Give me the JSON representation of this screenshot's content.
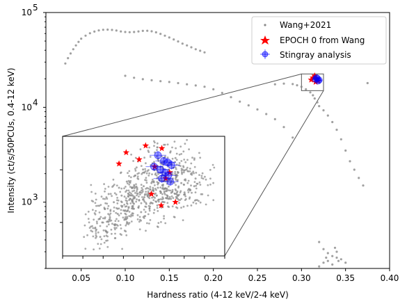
{
  "chart_data": {
    "type": "scatter",
    "title": "",
    "xlabel": "Hardness ratio (4-12 keV/2-4 keV)",
    "ylabel": "Intensity (ct/s/50PCUs, 0.4-12 keV)",
    "xlim": [
      0.01,
      0.4
    ],
    "ylim": [
      200,
      100000
    ],
    "yscale": "log",
    "x_ticks": [
      "0.05",
      "0.10",
      "0.15",
      "0.20",
      "0.25",
      "0.30",
      "0.35",
      "0.40"
    ],
    "y_ticks": [
      {
        "base": "10",
        "exp": "3"
      },
      {
        "base": "10",
        "exp": "4"
      },
      {
        "base": "10",
        "exp": "5"
      }
    ],
    "legend_position": "upper right",
    "colors": {
      "wang": "#888888",
      "epoch": "#ff0000",
      "stingray": "#0000ff",
      "box": "#555555"
    },
    "series": [
      {
        "name": "Wang+2021",
        "marker": "dot",
        "values": [
          [
            0.032,
            29000
          ],
          [
            0.035,
            33000
          ],
          [
            0.038,
            37000
          ],
          [
            0.041,
            41000
          ],
          [
            0.044,
            45000
          ],
          [
            0.047,
            49000
          ],
          [
            0.05,
            53000
          ],
          [
            0.055,
            57000
          ],
          [
            0.06,
            60500
          ],
          [
            0.065,
            63000
          ],
          [
            0.07,
            64800
          ],
          [
            0.075,
            65800
          ],
          [
            0.08,
            66000
          ],
          [
            0.085,
            65600
          ],
          [
            0.09,
            64600
          ],
          [
            0.095,
            63200
          ],
          [
            0.1,
            62300
          ],
          [
            0.105,
            62000
          ],
          [
            0.11,
            62300
          ],
          [
            0.115,
            63200
          ],
          [
            0.12,
            64000
          ],
          [
            0.125,
            64200
          ],
          [
            0.13,
            63400
          ],
          [
            0.135,
            61800
          ],
          [
            0.14,
            59500
          ],
          [
            0.145,
            57000
          ],
          [
            0.15,
            54500
          ],
          [
            0.155,
            52000
          ],
          [
            0.16,
            49500
          ],
          [
            0.165,
            47000
          ],
          [
            0.17,
            45000
          ],
          [
            0.175,
            43000
          ],
          [
            0.18,
            41000
          ],
          [
            0.185,
            39500
          ],
          [
            0.19,
            38000
          ],
          [
            0.1,
            21500
          ],
          [
            0.11,
            20500
          ],
          [
            0.12,
            19800
          ],
          [
            0.13,
            19300
          ],
          [
            0.14,
            18900
          ],
          [
            0.15,
            18500
          ],
          [
            0.16,
            18000
          ],
          [
            0.17,
            17500
          ],
          [
            0.18,
            17000
          ],
          [
            0.19,
            16500
          ],
          [
            0.2,
            15500
          ],
          [
            0.21,
            14200
          ],
          [
            0.22,
            12800
          ],
          [
            0.23,
            11500
          ],
          [
            0.24,
            10500
          ],
          [
            0.25,
            9500
          ],
          [
            0.26,
            8500
          ],
          [
            0.27,
            7500
          ],
          [
            0.28,
            6200
          ],
          [
            0.29,
            4800
          ],
          [
            0.27,
            17500
          ],
          [
            0.28,
            17800
          ],
          [
            0.29,
            17600
          ],
          [
            0.295,
            17100
          ],
          [
            0.3,
            16500
          ],
          [
            0.305,
            15500
          ],
          [
            0.31,
            14400
          ],
          [
            0.313,
            13400
          ],
          [
            0.315,
            12400
          ],
          [
            0.318,
            11300
          ],
          [
            0.32,
            10300
          ],
          [
            0.325,
            9300
          ],
          [
            0.33,
            8200
          ],
          [
            0.335,
            7000
          ],
          [
            0.34,
            5800
          ],
          [
            0.345,
            4600
          ],
          [
            0.35,
            3500
          ],
          [
            0.355,
            2700
          ],
          [
            0.36,
            2200
          ],
          [
            0.365,
            1800
          ],
          [
            0.37,
            1500
          ],
          [
            0.375,
            18000
          ],
          [
            0.32,
            380
          ],
          [
            0.325,
            320
          ],
          [
            0.33,
            290
          ],
          [
            0.335,
            270
          ],
          [
            0.34,
            260
          ],
          [
            0.345,
            250
          ],
          [
            0.33,
            240
          ],
          [
            0.325,
            230
          ],
          [
            0.335,
            220
          ],
          [
            0.32,
            210
          ],
          [
            0.34,
            300
          ],
          [
            0.338,
            330
          ],
          [
            0.328,
            260
          ],
          [
            0.342,
            240
          ],
          [
            0.35,
            230
          ]
        ]
      },
      {
        "name": "EPOCH 0 from Wang",
        "marker": "star",
        "values": [
          [
            0.311,
            19500
          ],
          [
            0.313,
            20500
          ],
          [
            0.315,
            21500
          ],
          [
            0.317,
            20000
          ],
          [
            0.319,
            19000
          ],
          [
            0.316,
            18500
          ]
        ]
      },
      {
        "name": "Stingray analysis",
        "marker": "circle-errorbar",
        "values": [
          [
            0.316,
            19800
          ],
          [
            0.318,
            20200
          ],
          [
            0.32,
            19400
          ],
          [
            0.319,
            19000
          ],
          [
            0.317,
            20500
          ]
        ]
      }
    ],
    "zoom_region": {
      "xlim": [
        0.3,
        0.325
      ],
      "ylim": [
        15000,
        22500
      ]
    },
    "inset": {
      "x_ticks": [],
      "y_ticks": [],
      "wang": [
        [
          0.3052,
          16400
        ],
        [
          0.3061,
          16800
        ],
        [
          0.3073,
          17100
        ],
        [
          0.3085,
          17300
        ],
        [
          0.3094,
          17500
        ],
        [
          0.3102,
          17700
        ],
        [
          0.311,
          17900
        ],
        [
          0.3118,
          18100
        ],
        [
          0.3126,
          18300
        ],
        [
          0.3133,
          18500
        ],
        [
          0.314,
          18700
        ],
        [
          0.3147,
          18900
        ],
        [
          0.3155,
          19100
        ],
        [
          0.3162,
          19300
        ],
        [
          0.317,
          19500
        ],
        [
          0.3177,
          19700
        ],
        [
          0.3184,
          19900
        ],
        [
          0.3191,
          20100
        ],
        [
          0.3198,
          19800
        ],
        [
          0.3205,
          19500
        ],
        [
          0.3065,
          17600
        ],
        [
          0.3079,
          18000
        ],
        [
          0.3091,
          18400
        ],
        [
          0.3104,
          18200
        ],
        [
          0.3115,
          18800
        ],
        [
          0.3125,
          19000
        ],
        [
          0.3137,
          19200
        ],
        [
          0.3149,
          19400
        ],
        [
          0.3159,
          19600
        ],
        [
          0.3168,
          19800
        ],
        [
          0.3058,
          16000
        ],
        [
          0.3067,
          16300
        ],
        [
          0.3081,
          16700
        ],
        [
          0.3096,
          17000
        ],
        [
          0.3108,
          17200
        ],
        [
          0.3121,
          17400
        ],
        [
          0.3134,
          17600
        ],
        [
          0.3146,
          17800
        ],
        [
          0.3157,
          18000
        ],
        [
          0.3167,
          18200
        ],
        [
          0.3178,
          18400
        ],
        [
          0.3188,
          18600
        ],
        [
          0.3196,
          18800
        ],
        [
          0.3203,
          19000
        ],
        [
          0.3183,
          19200
        ],
        [
          0.3071,
          18500
        ],
        [
          0.3087,
          18900
        ],
        [
          0.3099,
          19300
        ],
        [
          0.3112,
          19700
        ],
        [
          0.3124,
          20100
        ],
        [
          0.3136,
          20400
        ],
        [
          0.3148,
          20700
        ],
        [
          0.3158,
          21000
        ],
        [
          0.3166,
          21300
        ],
        [
          0.3174,
          20900
        ]
      ],
      "epoch": [
        [
          0.3098,
          21300
        ],
        [
          0.3128,
          21800
        ],
        [
          0.3153,
          21600
        ],
        [
          0.3087,
          20500
        ],
        [
          0.3118,
          20800
        ],
        [
          0.3142,
          20300
        ],
        [
          0.3165,
          19900
        ],
        [
          0.3137,
          18500
        ],
        [
          0.3174,
          18000
        ],
        [
          0.3152,
          17800
        ],
        [
          0.3159,
          19500
        ]
      ],
      "stingray": [
        [
          0.3147,
          21100
        ],
        [
          0.3156,
          20700
        ],
        [
          0.3162,
          20600
        ],
        [
          0.3168,
          20400
        ],
        [
          0.3141,
          20300
        ],
        [
          0.3151,
          20100
        ],
        [
          0.3158,
          19900
        ],
        [
          0.3163,
          19700
        ],
        [
          0.3153,
          19500
        ],
        [
          0.3166,
          19300
        ]
      ]
    }
  }
}
